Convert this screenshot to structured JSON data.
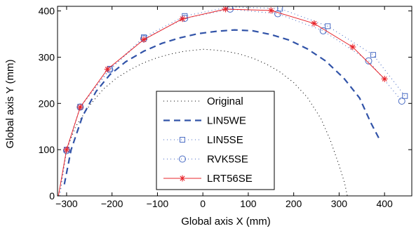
{
  "chart_data": {
    "type": "line",
    "title": "",
    "xlabel": "Global axis X (mm)",
    "ylabel": "Global axis Y (mm)",
    "xlim": [
      -320,
      460
    ],
    "ylim": [
      0,
      410
    ],
    "xticks": [
      -300,
      -200,
      -100,
      0,
      100,
      200,
      300,
      400
    ],
    "yticks": [
      0,
      100,
      200,
      300,
      400
    ],
    "grid": false,
    "legend_position": "lower-center",
    "series": [
      {
        "name": "Original",
        "color": "#000000",
        "style": "dotted",
        "marker": "none",
        "x": [
          -318,
          -300,
          -280,
          -250,
          -220,
          -190,
          -160,
          -130,
          -100,
          -70,
          -40,
          -10,
          0,
          20,
          50,
          80,
          110,
          140,
          170,
          200,
          230,
          260,
          280,
          300,
          312,
          318
        ],
        "y": [
          0,
          100,
          150,
          195,
          230,
          255,
          273,
          288,
          299,
          307,
          313,
          316,
          317,
          316,
          313,
          307,
          298,
          285,
          268,
          245,
          213,
          167,
          122,
          66,
          28,
          0
        ]
      },
      {
        "name": "LIN5WE",
        "color": "#3153a8",
        "style": "dashed",
        "marker": "none",
        "x": [
          -305,
          -290,
          -265,
          -235,
          -205,
          -170,
          -130,
          -90,
          -50,
          -10,
          30,
          70,
          110,
          150,
          190,
          230,
          270,
          310,
          345,
          370,
          390
        ],
        "y": [
          25,
          100,
          172,
          226,
          262,
          290,
          313,
          330,
          342,
          351,
          356,
          359,
          357,
          349,
          337,
          318,
          292,
          255,
          212,
          158,
          120
        ]
      },
      {
        "name": "LIN5SE",
        "color": "#4a6cc4",
        "style": "dotted",
        "marker": "square",
        "x": [
          -315,
          -300,
          -270,
          -205,
          -130,
          -40,
          60,
          170,
          275,
          375,
          445
        ],
        "y": [
          0,
          100,
          193,
          275,
          343,
          389,
          409,
          405,
          367,
          305,
          216
        ]
      },
      {
        "name": "RVK5SE",
        "color": "#4a6cc4",
        "style": "dotted",
        "marker": "circle",
        "x": [
          -315,
          -300,
          -270,
          -205,
          -130,
          -40,
          60,
          165,
          265,
          365,
          438
        ],
        "y": [
          0,
          98,
          192,
          273,
          340,
          384,
          404,
          394,
          357,
          292,
          205
        ]
      },
      {
        "name": "LRT56SE",
        "color": "#e8242b",
        "style": "solid",
        "marker": "asterisk",
        "x": [
          -318,
          -300,
          -270,
          -210,
          -130,
          -45,
          50,
          150,
          245,
          330,
          400
        ],
        "y": [
          0,
          100,
          192,
          274,
          338,
          383,
          404,
          401,
          373,
          322,
          253
        ]
      }
    ]
  }
}
